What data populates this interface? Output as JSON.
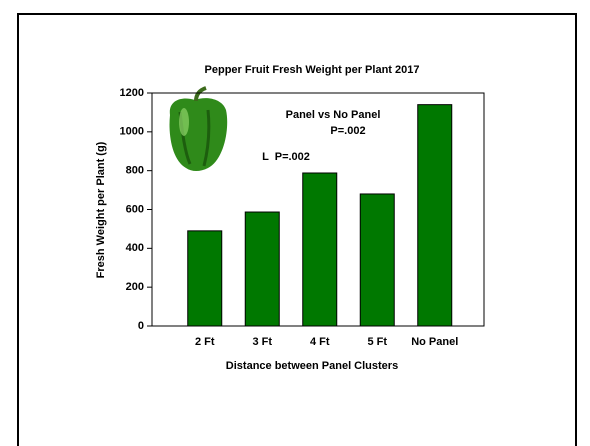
{
  "chart_data": {
    "type": "bar",
    "title": "Pepper Fruit Fresh Weight per Plant 2017",
    "x_label": "Distance between Panel Clusters",
    "y_label": "Fresh Weight per Plant (g)",
    "categories": [
      "2 Ft",
      "3 Ft",
      "4 Ft",
      "5 Ft",
      "No Panel"
    ],
    "values": [
      490,
      587,
      788,
      680,
      1140
    ],
    "color": "#007800",
    "ylim": [
      0,
      1200
    ],
    "yticks": [
      0,
      200,
      400,
      600,
      800,
      1000,
      1200
    ],
    "grid": false,
    "annotations": [
      "Panel vs No Panel",
      "P=.002",
      "L  P=.002"
    ]
  }
}
